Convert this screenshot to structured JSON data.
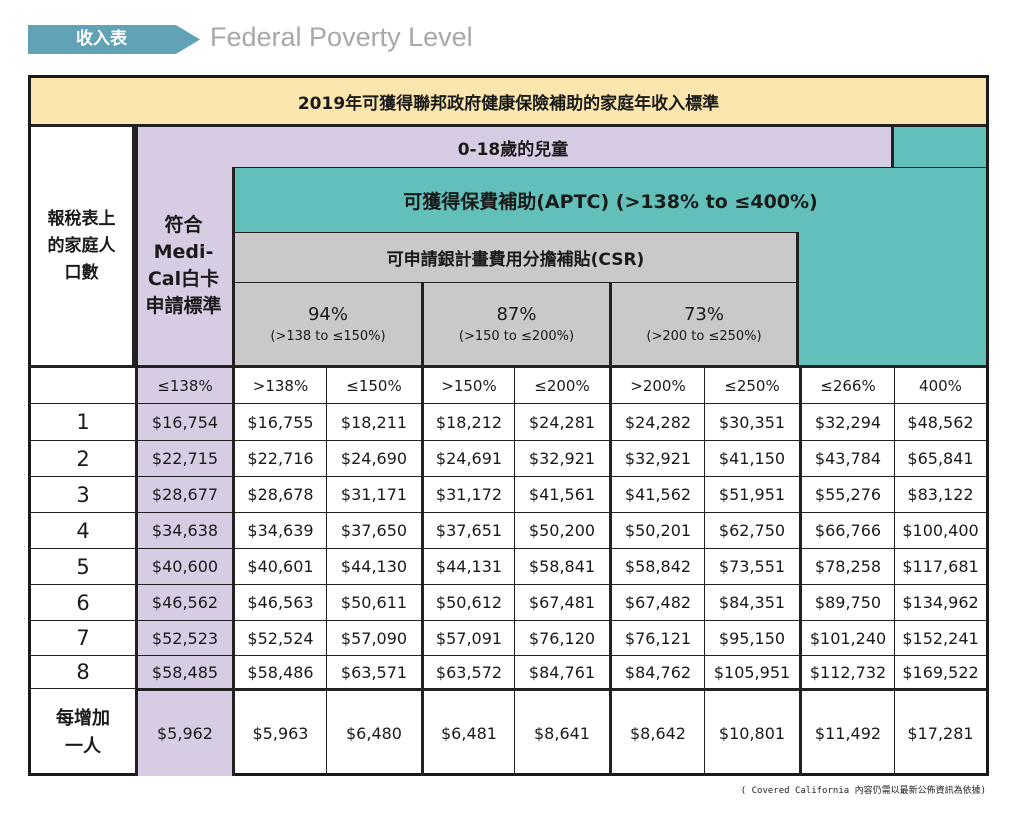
{
  "header": {
    "tag": "收入表",
    "subtitle": "Federal Poverty Level"
  },
  "table": {
    "title": "2019年可獲得聯邦政府健康保險補助的家庭年收入標準",
    "household_label": "報稅表上的家庭人口數",
    "children_label": "0-18歲的兒童",
    "medical_label": "符合Medi-Cal白卡申請標準",
    "aptc_label": "可獲得保費補助(APTC) (>138% to ≤400%)",
    "csr_label": "可申請銀計畫費用分擔補貼(CSR)",
    "csr_tiers": [
      {
        "pct": "94%",
        "range": "(>138 to ≤150%)"
      },
      {
        "pct": "87%",
        "range": "(>150 to ≤200%)"
      },
      {
        "pct": "73%",
        "range": "(>200 to ≤250%)"
      }
    ],
    "columns": [
      "≤138%",
      ">138%",
      "≤150%",
      ">150%",
      "≤200%",
      ">200%",
      "≤250%",
      "≤266%",
      "400%"
    ],
    "rows": [
      {
        "label": "1",
        "values": [
          "$16,754",
          "$16,755",
          "$18,211",
          "$18,212",
          "$24,281",
          "$24,282",
          "$30,351",
          "$32,294",
          "$48,562"
        ]
      },
      {
        "label": "2",
        "values": [
          "$22,715",
          "$22,716",
          "$24,690",
          "$24,691",
          "$32,921",
          "$32,921",
          "$41,150",
          "$43,784",
          "$65,841"
        ]
      },
      {
        "label": "3",
        "values": [
          "$28,677",
          "$28,678",
          "$31,171",
          "$31,172",
          "$41,561",
          "$41,562",
          "$51,951",
          "$55,276",
          "$83,122"
        ]
      },
      {
        "label": "4",
        "values": [
          "$34,638",
          "$34,639",
          "$37,650",
          "$37,651",
          "$50,200",
          "$50,201",
          "$62,750",
          "$66,766",
          "$100,400"
        ]
      },
      {
        "label": "5",
        "values": [
          "$40,600",
          "$40,601",
          "$44,130",
          "$44,131",
          "$58,841",
          "$58,842",
          "$73,551",
          "$78,258",
          "$117,681"
        ]
      },
      {
        "label": "6",
        "values": [
          "$46,562",
          "$46,563",
          "$50,611",
          "$50,612",
          "$67,481",
          "$67,482",
          "$84,351",
          "$89,750",
          "$134,962"
        ]
      },
      {
        "label": "7",
        "values": [
          "$52,523",
          "$52,524",
          "$57,090",
          "$57,091",
          "$76,120",
          "$76,121",
          "$95,150",
          "$101,240",
          "$152,241"
        ]
      },
      {
        "label": "8",
        "values": [
          "$58,485",
          "$58,486",
          "$63,571",
          "$63,572",
          "$84,761",
          "$84,762",
          "$105,951",
          "$112,732",
          "$169,522"
        ]
      },
      {
        "label": "每增加一人",
        "values": [
          "$5,962",
          "$5,963",
          "$6,480",
          "$6,481",
          "$8,641",
          "$8,642",
          "$10,801",
          "$11,492",
          "$17,281"
        ]
      }
    ]
  },
  "footer": "( Covered California 內容仍需以最新公佈資訊為依據)",
  "colors": {
    "title_bg": "#fbe6ae",
    "medical_bg": "#d8cce4",
    "aptc_bg": "#63bfb9",
    "csr_bg": "#c9c9c9",
    "tag_bg": "#62a2b7"
  }
}
